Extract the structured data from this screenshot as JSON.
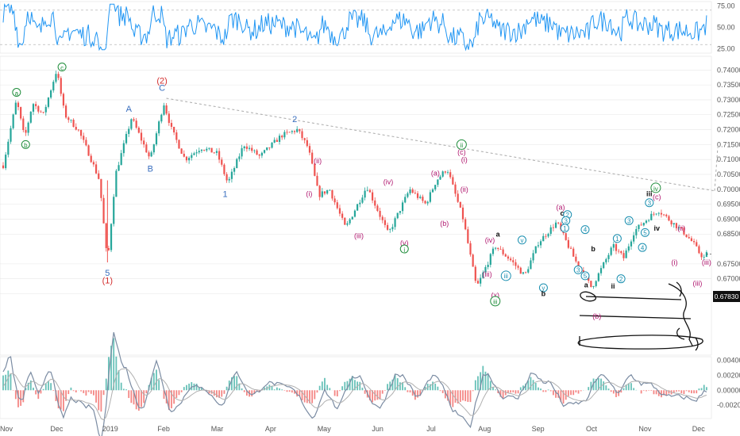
{
  "chart_data": [
    {
      "type": "line",
      "name": "rsi-panel",
      "ylim": [
        20,
        80
      ],
      "y_ticks": [
        "75.00",
        "50.00",
        "25.00"
      ],
      "y_tick_values": [
        75,
        50,
        25
      ],
      "levels": [
        70,
        30
      ]
    },
    {
      "type": "candlestick",
      "name": "price-panel",
      "ylim": [
        0.6444,
        0.7446
      ],
      "x_range": [
        0,
        13.3
      ],
      "x_ticks": [
        "Nov",
        "Dec",
        "2019",
        "Feb",
        "Mar",
        "Apr",
        "May",
        "Jun",
        "Jul",
        "Aug",
        "Sep",
        "Oct",
        "Nov",
        "Dec"
      ],
      "y_ticks": [
        "0.74000",
        "0.73500",
        "0.73000",
        "0.72500",
        "0.72000",
        "0.71500",
        "0.71000",
        "0.70500",
        "0.70000",
        "0.69500",
        "0.69000",
        "0.68500",
        "0.67500",
        "0.67000",
        "0.66500"
      ],
      "y_tick_values": [
        0.74,
        0.735,
        0.73,
        0.725,
        0.72,
        0.715,
        0.71,
        0.705,
        0.7,
        0.695,
        0.69,
        0.685,
        0.675,
        0.67,
        0.665
      ],
      "last_price": "0.67830",
      "last_price_value": 0.6783,
      "price_path": [
        [
          0.0,
          0.708
        ],
        [
          0.25,
          0.73
        ],
        [
          0.4,
          0.717
        ],
        [
          0.55,
          0.729
        ],
        [
          0.75,
          0.725
        ],
        [
          1.0,
          0.74
        ],
        [
          1.15,
          0.725
        ],
        [
          1.4,
          0.72
        ],
        [
          1.6,
          0.712
        ],
        [
          1.8,
          0.703
        ],
        [
          1.95,
          0.675
        ],
        [
          2.1,
          0.705
        ],
        [
          2.4,
          0.724
        ],
        [
          2.6,
          0.716
        ],
        [
          2.75,
          0.71
        ],
        [
          3.0,
          0.729
        ],
        [
          3.15,
          0.72
        ],
        [
          3.4,
          0.71
        ],
        [
          3.7,
          0.714
        ],
        [
          4.0,
          0.712
        ],
        [
          4.2,
          0.702
        ],
        [
          4.5,
          0.715
        ],
        [
          4.8,
          0.711
        ],
        [
          5.2,
          0.718
        ],
        [
          5.5,
          0.72
        ],
        [
          5.7,
          0.714
        ],
        [
          5.9,
          0.698
        ],
        [
          6.1,
          0.7
        ],
        [
          6.4,
          0.687
        ],
        [
          6.8,
          0.701
        ],
        [
          7.2,
          0.685
        ],
        [
          7.6,
          0.7
        ],
        [
          7.9,
          0.695
        ],
        [
          8.1,
          0.703
        ],
        [
          8.3,
          0.707
        ],
        [
          8.6,
          0.69
        ],
        [
          8.85,
          0.667
        ],
        [
          9.2,
          0.681
        ],
        [
          9.5,
          0.676
        ],
        [
          9.75,
          0.671
        ],
        [
          10.0,
          0.682
        ],
        [
          10.35,
          0.689
        ],
        [
          10.7,
          0.676
        ],
        [
          11.0,
          0.667
        ],
        [
          11.2,
          0.674
        ],
        [
          11.4,
          0.681
        ],
        [
          11.6,
          0.677
        ],
        [
          11.8,
          0.686
        ],
        [
          12.1,
          0.691
        ],
        [
          12.25,
          0.693
        ],
        [
          12.5,
          0.689
        ],
        [
          12.7,
          0.686
        ],
        [
          12.9,
          0.682
        ],
        [
          13.0,
          0.679
        ],
        [
          13.1,
          0.677
        ],
        [
          13.15,
          0.6783
        ]
      ],
      "trendline": [
        [
          3.05,
          0.7305
        ],
        [
          13.3,
          0.6995
        ]
      ],
      "annotations": [
        {
          "text": "c",
          "x": 1.1,
          "y": 0.741,
          "style": "green-circle"
        },
        {
          "text": "a",
          "x": 0.25,
          "y": 0.7325,
          "style": "green-circle"
        },
        {
          "text": "b",
          "x": 0.42,
          "y": 0.715,
          "style": "green-circle"
        },
        {
          "text": "5",
          "x": 1.95,
          "y": 0.672,
          "style": "blue"
        },
        {
          "text": "(1)",
          "x": 1.95,
          "y": 0.6695,
          "style": "red"
        },
        {
          "text": "A",
          "x": 2.35,
          "y": 0.727,
          "style": "blue"
        },
        {
          "text": "B",
          "x": 2.75,
          "y": 0.707,
          "style": "blue"
        },
        {
          "text": "(2)",
          "x": 2.97,
          "y": 0.7365,
          "style": "red"
        },
        {
          "text": "C",
          "x": 2.97,
          "y": 0.734,
          "style": "blue"
        },
        {
          "text": "1",
          "x": 4.15,
          "y": 0.6985,
          "style": "blue"
        },
        {
          "text": "2",
          "x": 5.45,
          "y": 0.7235,
          "style": "blue"
        },
        {
          "text": "(i)",
          "x": 5.72,
          "y": 0.6985,
          "style": "magenta"
        },
        {
          "text": "(ii)",
          "x": 5.88,
          "y": 0.7095,
          "style": "magenta"
        },
        {
          "text": "(iii)",
          "x": 6.65,
          "y": 0.6845,
          "style": "magenta"
        },
        {
          "text": "(iv)",
          "x": 7.2,
          "y": 0.7025,
          "style": "magenta"
        },
        {
          "text": "(v)",
          "x": 7.5,
          "y": 0.682,
          "style": "magenta"
        },
        {
          "text": "i",
          "x": 7.5,
          "y": 0.68,
          "style": "green-circle"
        },
        {
          "text": "(a)",
          "x": 8.08,
          "y": 0.7055,
          "style": "magenta"
        },
        {
          "text": "(b)",
          "x": 8.25,
          "y": 0.6885,
          "style": "magenta"
        },
        {
          "text": "ii",
          "x": 8.57,
          "y": 0.715,
          "style": "green-circle"
        },
        {
          "text": "(c)",
          "x": 8.57,
          "y": 0.7125,
          "style": "magenta"
        },
        {
          "text": "(i)",
          "x": 8.62,
          "y": 0.71,
          "style": "magenta"
        },
        {
          "text": "(ii)",
          "x": 8.62,
          "y": 0.7,
          "style": "magenta"
        },
        {
          "text": "(iv)",
          "x": 9.1,
          "y": 0.683,
          "style": "magenta"
        },
        {
          "text": "a",
          "x": 9.25,
          "y": 0.685,
          "style": "black"
        },
        {
          "text": "(iii)",
          "x": 9.05,
          "y": 0.6715,
          "style": "magenta"
        },
        {
          "text": "iii",
          "x": 9.4,
          "y": 0.671,
          "style": "cyan-circle"
        },
        {
          "text": "v",
          "x": 9.7,
          "y": 0.683,
          "style": "cyan-circle"
        },
        {
          "text": "(x)",
          "x": 9.2,
          "y": 0.6645,
          "style": "magenta"
        },
        {
          "text": "iii",
          "x": 9.2,
          "y": 0.6625,
          "style": "green-circle"
        },
        {
          "text": "y",
          "x": 10.1,
          "y": 0.667,
          "style": "cyan-circle"
        },
        {
          "text": "b",
          "x": 10.1,
          "y": 0.665,
          "style": "black"
        },
        {
          "text": "(a)",
          "x": 10.42,
          "y": 0.694,
          "style": "magenta"
        },
        {
          "text": "c",
          "x": 10.45,
          "y": 0.692,
          "style": "black"
        },
        {
          "text": "2",
          "x": 10.55,
          "y": 0.6915,
          "style": "cyan-circle"
        },
        {
          "text": "3",
          "x": 10.52,
          "y": 0.6895,
          "style": "cyan-circle"
        },
        {
          "text": "1",
          "x": 10.5,
          "y": 0.687,
          "style": "cyan-circle"
        },
        {
          "text": "4",
          "x": 10.88,
          "y": 0.6865,
          "style": "cyan-circle"
        },
        {
          "text": "b",
          "x": 11.03,
          "y": 0.68,
          "style": "black"
        },
        {
          "text": "3",
          "x": 10.75,
          "y": 0.673,
          "style": "cyan-circle"
        },
        {
          "text": "5",
          "x": 10.88,
          "y": 0.671,
          "style": "cyan-circle"
        },
        {
          "text": "a",
          "x": 10.9,
          "y": 0.668,
          "style": "black"
        },
        {
          "text": "ii",
          "x": 11.4,
          "y": 0.6675,
          "style": "black"
        },
        {
          "text": "(b)",
          "x": 11.1,
          "y": 0.6575,
          "style": "magenta"
        },
        {
          "text": "1",
          "x": 11.48,
          "y": 0.6835,
          "style": "cyan-circle"
        },
        {
          "text": "2",
          "x": 11.55,
          "y": 0.67,
          "style": "cyan-circle"
        },
        {
          "text": "3",
          "x": 11.7,
          "y": 0.6895,
          "style": "cyan-circle"
        },
        {
          "text": "4",
          "x": 11.95,
          "y": 0.6805,
          "style": "cyan-circle"
        },
        {
          "text": "5",
          "x": 12.0,
          "y": 0.6855,
          "style": "cyan-circle"
        },
        {
          "text": "iii",
          "x": 12.08,
          "y": 0.6985,
          "style": "black"
        },
        {
          "text": "iv",
          "x": 12.22,
          "y": 0.687,
          "style": "black"
        },
        {
          "text": "3",
          "x": 12.08,
          "y": 0.6955,
          "style": "cyan-circle"
        },
        {
          "text": "iv",
          "x": 12.2,
          "y": 0.7005,
          "style": "green-circle"
        },
        {
          "text": "(c)",
          "x": 12.22,
          "y": 0.6975,
          "style": "magenta"
        },
        {
          "text": "(ii)",
          "x": 12.68,
          "y": 0.687,
          "style": "magenta"
        },
        {
          "text": "(i)",
          "x": 12.55,
          "y": 0.6755,
          "style": "magenta"
        },
        {
          "text": "(iii)",
          "x": 13.15,
          "y": 0.6755,
          "style": "magenta"
        },
        {
          "text": "(iii)",
          "x": 12.98,
          "y": 0.6685,
          "style": "magenta"
        }
      ]
    },
    {
      "type": "bar",
      "name": "macd-panel",
      "ylim": [
        -0.0038,
        0.0045
      ],
      "y_ticks": [
        "0.00400",
        "0.00200",
        "0.00000",
        "-0.00200"
      ],
      "y_tick_values": [
        0.004,
        0.002,
        0.0,
        -0.002
      ]
    }
  ],
  "colors": {
    "up": "#26a69a",
    "down": "#ef5350",
    "rsi": "#2196f3",
    "grid": "#e6e6e6",
    "green": "#1e8c3a",
    "blue": "#3a6fbf",
    "red": "#d32f2f",
    "magenta": "#b0166e",
    "cyan": "#1a8fb0",
    "macd": "#7b8ca3",
    "signal": "#b0b0b0"
  }
}
